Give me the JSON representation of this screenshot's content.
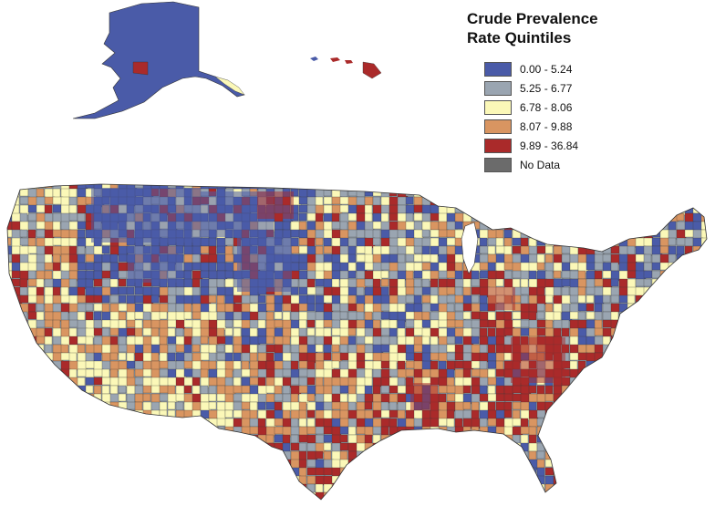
{
  "legend": {
    "title_line1": "Crude Prevalence",
    "title_line2": "Rate Quintiles",
    "items": [
      {
        "label": "0.00 - 5.24",
        "color": "#4a5ba8"
      },
      {
        "label": "5.25 - 6.77",
        "color": "#9aa5b1"
      },
      {
        "label": "6.78 - 8.06",
        "color": "#fbf8b8"
      },
      {
        "label": "8.07 - 9.88",
        "color": "#d99561"
      },
      {
        "label": "9.89 - 36.84",
        "color": "#aa2a2a"
      },
      {
        "label": "No Data",
        "color": "#6b6b6b"
      }
    ]
  },
  "map": {
    "regions": [
      {
        "name": "alaska",
        "class": 0
      },
      {
        "name": "hawaii",
        "class": 4
      },
      {
        "name": "contiguous-us",
        "class": 0
      }
    ]
  }
}
